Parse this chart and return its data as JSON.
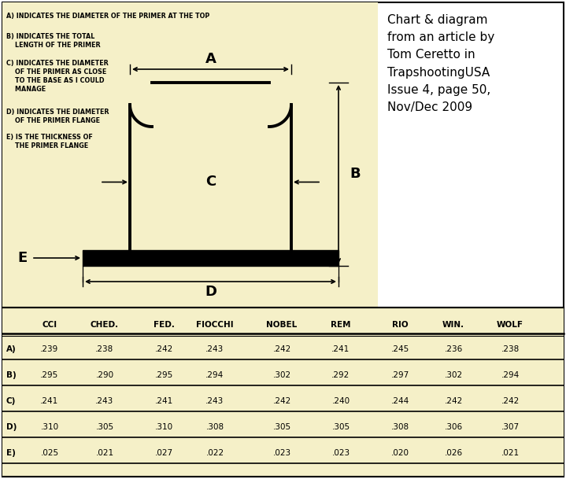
{
  "bg_color": "#f5f0c8",
  "outer_bg": "#ffffff",
  "side_text": "Chart & diagram\nfrom an article by\nTom Ceretto in\nTrapshootingUSA\nIssue 4, page 50,\nNov/Dec 2009",
  "table_headers": [
    "",
    "CCI",
    "CHED.",
    "FED.",
    "FIOCCHI",
    "NOBEL",
    "REM",
    "RIO",
    "WIN.",
    "WOLF"
  ],
  "table_rows": [
    [
      "A)",
      ".239",
      ".238",
      ".242",
      ".243",
      ".242",
      ".241",
      ".245",
      ".236",
      ".238"
    ],
    [
      "B)",
      ".295",
      ".290",
      ".295",
      ".294",
      ".302",
      ".292",
      ".297",
      ".302",
      ".294"
    ],
    [
      "C)",
      ".241",
      ".243",
      ".241",
      ".243",
      ".242",
      ".240",
      ".244",
      ".242",
      ".242"
    ],
    [
      "D)",
      ".310",
      ".305",
      ".310",
      ".308",
      ".305",
      ".305",
      ".308",
      ".306",
      ".307"
    ],
    [
      "E)",
      ".025",
      ".021",
      ".027",
      ".022",
      ".023",
      ".023",
      ".020",
      ".026",
      ".021"
    ]
  ],
  "legend": [
    "A) INDICATES THE DIAMETER OF THE PRIMER AT THE TOP",
    "B) INDICATES THE TOTAL\n    LENGTH OF THE PRIMER",
    "C) INDICATES THE DIAMETER\n    OF THE PRIMER AS CLOSE\n    TO THE BASE AS I COULD\n    MANAGE",
    "D) INDICATES THE DIAMETER\n    OF THE PRIMER FLANGE",
    "E) IS THE THICKNESS OF\n    THE PRIMER FLANGE"
  ]
}
